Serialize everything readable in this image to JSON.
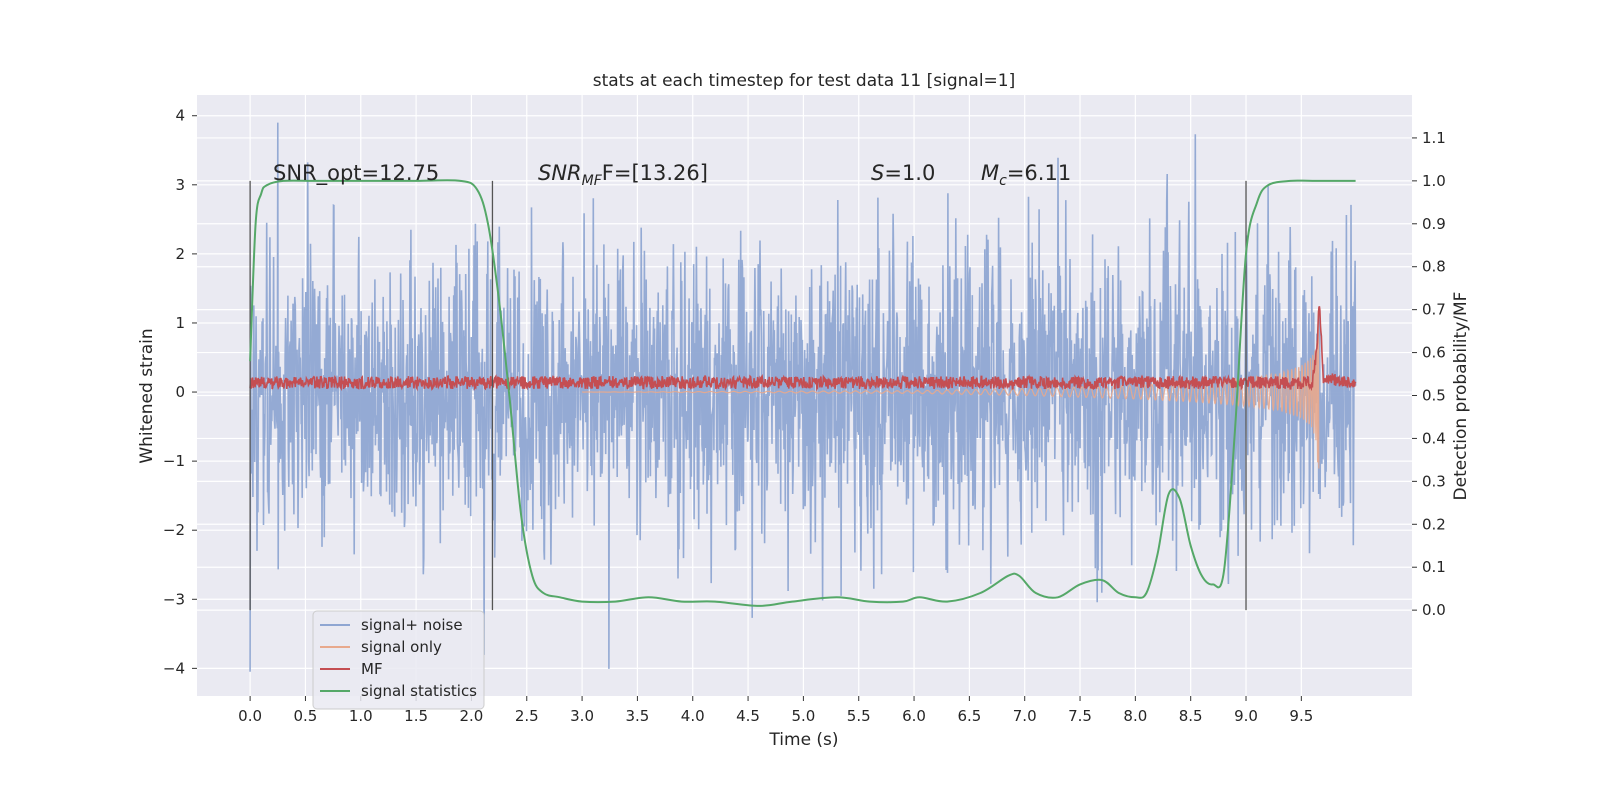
{
  "chart_data": {
    "type": "line",
    "title": "stats at each timestep for test data 11 [signal=1]",
    "xlabel": "Time (s)",
    "ylabel": "Whitened strain",
    "y2label": "Detection probability/MF",
    "xlim": [
      -0.48,
      10.5
    ],
    "ylim": [
      -4.4,
      4.3
    ],
    "y2lim": [
      -0.2,
      1.2
    ],
    "xticks": [
      "0.0",
      "0.5",
      "1.0",
      "1.5",
      "2.0",
      "2.5",
      "3.0",
      "3.5",
      "4.0",
      "4.5",
      "5.0",
      "5.5",
      "6.0",
      "6.5",
      "7.0",
      "7.5",
      "8.0",
      "8.5",
      "9.0",
      "9.5"
    ],
    "xtick_values": [
      0.0,
      0.5,
      1.0,
      1.5,
      2.0,
      2.5,
      3.0,
      3.5,
      4.0,
      4.5,
      5.0,
      5.5,
      6.0,
      6.5,
      7.0,
      7.5,
      8.0,
      8.5,
      9.0,
      9.5
    ],
    "yticks": [
      "4",
      "3",
      "2",
      "1",
      "0",
      "−1",
      "−2",
      "−3",
      "−4"
    ],
    "ytick_values": [
      4,
      3,
      2,
      1,
      0,
      -1,
      -2,
      -3,
      -4
    ],
    "y2ticks": [
      "1.1",
      "1.0",
      "0.9",
      "0.8",
      "0.7",
      "0.6",
      "0.5",
      "0.4",
      "0.3",
      "0.2",
      "0.1",
      "0.0"
    ],
    "y2tick_values": [
      1.1,
      1.0,
      0.9,
      0.8,
      0.7,
      0.6,
      0.5,
      0.4,
      0.3,
      0.2,
      0.1,
      0.0
    ],
    "grid": true,
    "legend_position": "lower-left",
    "annotations": {
      "snr_opt": "SNR_opt=12.75",
      "snr_mf_main": "SNR",
      "snr_mf_sub": "MF",
      "snr_mf_rest": "F=[13.26]",
      "s_main": "S",
      "s_rest": "=1.0",
      "mc_main": "M",
      "mc_sub": "c",
      "mc_rest": "=6.11"
    },
    "vertical_lines_x": [
      0.0,
      2.19,
      9.0
    ],
    "series": [
      {
        "name": "signal+ noise",
        "color": "#8fa6d2",
        "description_values": {
          "x_start": 0.0,
          "x_end": 9.99,
          "typical_envelope": [
            -2.5,
            2.5
          ],
          "max": 3.9,
          "min": -4.05
        }
      },
      {
        "name": "signal only",
        "color": "#e8a98d",
        "x": [
          6.0,
          7.0,
          8.0,
          8.5,
          9.0,
          9.3,
          9.5,
          9.6,
          9.64,
          9.66
        ],
        "envelope": [
          0.02,
          0.05,
          0.1,
          0.14,
          0.2,
          0.27,
          0.38,
          0.52,
          0.75,
          1.6
        ]
      },
      {
        "name": "MF",
        "color": "#c44e52",
        "x": [
          0.0,
          9.6,
          9.64,
          9.66,
          9.7,
          9.99
        ],
        "y2": [
          0.53,
          0.53,
          0.6,
          0.72,
          0.54,
          0.53
        ]
      },
      {
        "name": "signal statistics",
        "color": "#55a868",
        "x": [
          0.0,
          0.05,
          0.1,
          0.15,
          0.3,
          0.6,
          1.0,
          1.5,
          1.9,
          2.05,
          2.15,
          2.25,
          2.35,
          2.45,
          2.55,
          2.65,
          2.8,
          3.0,
          3.3,
          3.6,
          3.9,
          4.2,
          4.6,
          4.9,
          5.3,
          5.6,
          5.9,
          6.05,
          6.3,
          6.6,
          6.85,
          6.95,
          7.1,
          7.3,
          7.5,
          7.7,
          7.85,
          8.0,
          8.1,
          8.2,
          8.3,
          8.4,
          8.5,
          8.6,
          8.7,
          8.8,
          8.9,
          9.0,
          9.1,
          9.2,
          9.4,
          9.6,
          9.99
        ],
        "y2": [
          0.58,
          0.9,
          0.97,
          0.99,
          1.0,
          1.0,
          1.0,
          1.0,
          1.0,
          0.98,
          0.9,
          0.72,
          0.48,
          0.22,
          0.08,
          0.04,
          0.03,
          0.02,
          0.02,
          0.03,
          0.02,
          0.02,
          0.01,
          0.02,
          0.03,
          0.02,
          0.02,
          0.03,
          0.02,
          0.04,
          0.08,
          0.08,
          0.04,
          0.03,
          0.06,
          0.07,
          0.04,
          0.03,
          0.04,
          0.13,
          0.27,
          0.26,
          0.15,
          0.08,
          0.06,
          0.09,
          0.42,
          0.83,
          0.95,
          0.99,
          1.0,
          1.0,
          1.0
        ]
      }
    ]
  }
}
